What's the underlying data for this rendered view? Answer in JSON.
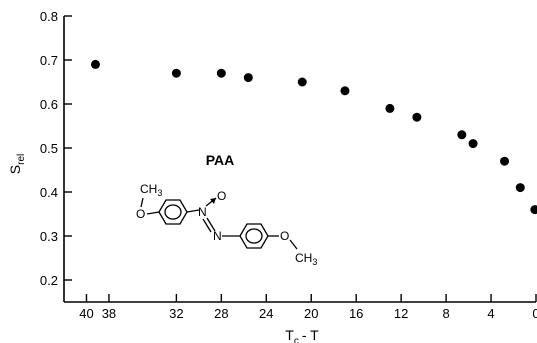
{
  "chart_data": {
    "type": "scatter",
    "ylabel": "S",
    "ylabel_sub": "rel",
    "xlabel_main": "T",
    "xlabel_sub": "c",
    "xlabel_tail": "- T",
    "x_reversed": true,
    "xlim": [
      42,
      0
    ],
    "ylim": [
      0.15,
      0.8
    ],
    "x_ticks": [
      40,
      38,
      32,
      28,
      24,
      20,
      16,
      12,
      8,
      4,
      0
    ],
    "x_tick_labels": [
      "40",
      "38",
      "32",
      "28",
      "24",
      "20",
      "16",
      "12",
      "8",
      "4",
      "0"
    ],
    "y_ticks": [
      0.2,
      0.3,
      0.4,
      0.5,
      0.6,
      0.7,
      0.8
    ],
    "y_tick_labels": [
      "0.2",
      "0.3",
      "0.4",
      "0.5",
      "0.6",
      "0.7",
      "0.8"
    ],
    "grid": false,
    "points": [
      {
        "x": 39.2,
        "y": 0.69
      },
      {
        "x": 32.0,
        "y": 0.67
      },
      {
        "x": 28.0,
        "y": 0.67
      },
      {
        "x": 25.6,
        "y": 0.66
      },
      {
        "x": 20.8,
        "y": 0.65
      },
      {
        "x": 17.0,
        "y": 0.63
      },
      {
        "x": 13.0,
        "y": 0.59
      },
      {
        "x": 10.6,
        "y": 0.57
      },
      {
        "x": 6.6,
        "y": 0.53
      },
      {
        "x": 5.6,
        "y": 0.51
      },
      {
        "x": 2.8,
        "y": 0.47
      },
      {
        "x": 1.4,
        "y": 0.41
      },
      {
        "x": 0.1,
        "y": 0.36
      }
    ],
    "annotation": {
      "compound": "PAA",
      "structure_labels": {
        "left_group": "CH",
        "left_group_sub": "3",
        "oxygen_left": "O",
        "nitrogen_top": "N",
        "nitrogen_bottom": "N",
        "n_oxide": "O",
        "oxygen_right": "O",
        "right_group": "CH",
        "right_group_sub": "3"
      }
    }
  }
}
